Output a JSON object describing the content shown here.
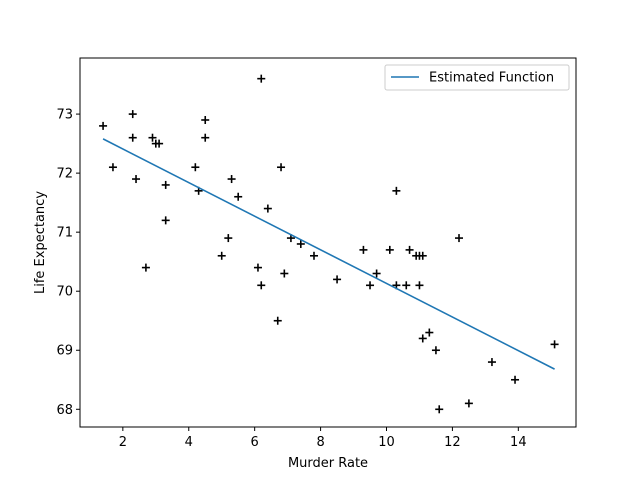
{
  "chart_data": {
    "type": "scatter",
    "title": "",
    "xlabel": "Murder Rate",
    "ylabel": "Life Expectancy",
    "xlim": [
      0.7,
      15.75
    ],
    "ylim": [
      67.7,
      73.95
    ],
    "xticks": [
      2,
      4,
      6,
      8,
      10,
      12,
      14
    ],
    "yticks": [
      68,
      69,
      70,
      71,
      72,
      73
    ],
    "grid": false,
    "legend_position": "top-right",
    "points": {
      "marker": "plus",
      "color": "#000000",
      "x": [
        1.4,
        1.7,
        2.3,
        2.3,
        2.4,
        2.7,
        2.9,
        3.0,
        3.1,
        3.3,
        3.3,
        4.2,
        4.3,
        4.5,
        4.5,
        5.0,
        5.2,
        5.3,
        5.5,
        6.1,
        6.2,
        6.2,
        6.4,
        6.7,
        6.8,
        6.9,
        7.1,
        7.4,
        7.8,
        8.5,
        9.3,
        9.5,
        9.7,
        10.1,
        10.3,
        10.3,
        10.6,
        10.7,
        10.9,
        11.0,
        11.0,
        11.1,
        11.1,
        11.3,
        11.5,
        11.6,
        12.2,
        12.5,
        13.2,
        13.9,
        15.1
      ],
      "y": [
        72.8,
        72.1,
        73.0,
        72.6,
        71.9,
        70.4,
        72.6,
        72.5,
        72.5,
        71.8,
        71.2,
        72.1,
        71.7,
        72.9,
        72.6,
        70.6,
        70.9,
        71.9,
        71.6,
        70.4,
        73.6,
        70.1,
        71.4,
        69.5,
        72.1,
        70.3,
        70.9,
        70.8,
        70.6,
        70.2,
        70.7,
        70.1,
        70.3,
        70.7,
        71.7,
        70.1,
        70.1,
        70.7,
        70.6,
        70.6,
        70.1,
        70.6,
        69.2,
        69.3,
        69.0,
        68.0,
        70.9,
        68.1,
        68.8,
        68.5,
        69.1
      ]
    },
    "series": [
      {
        "name": "Estimated Function",
        "type": "line",
        "color": "#1f77b4",
        "x": [
          1.4,
          15.1
        ],
        "y": [
          72.58,
          68.68
        ]
      }
    ]
  }
}
